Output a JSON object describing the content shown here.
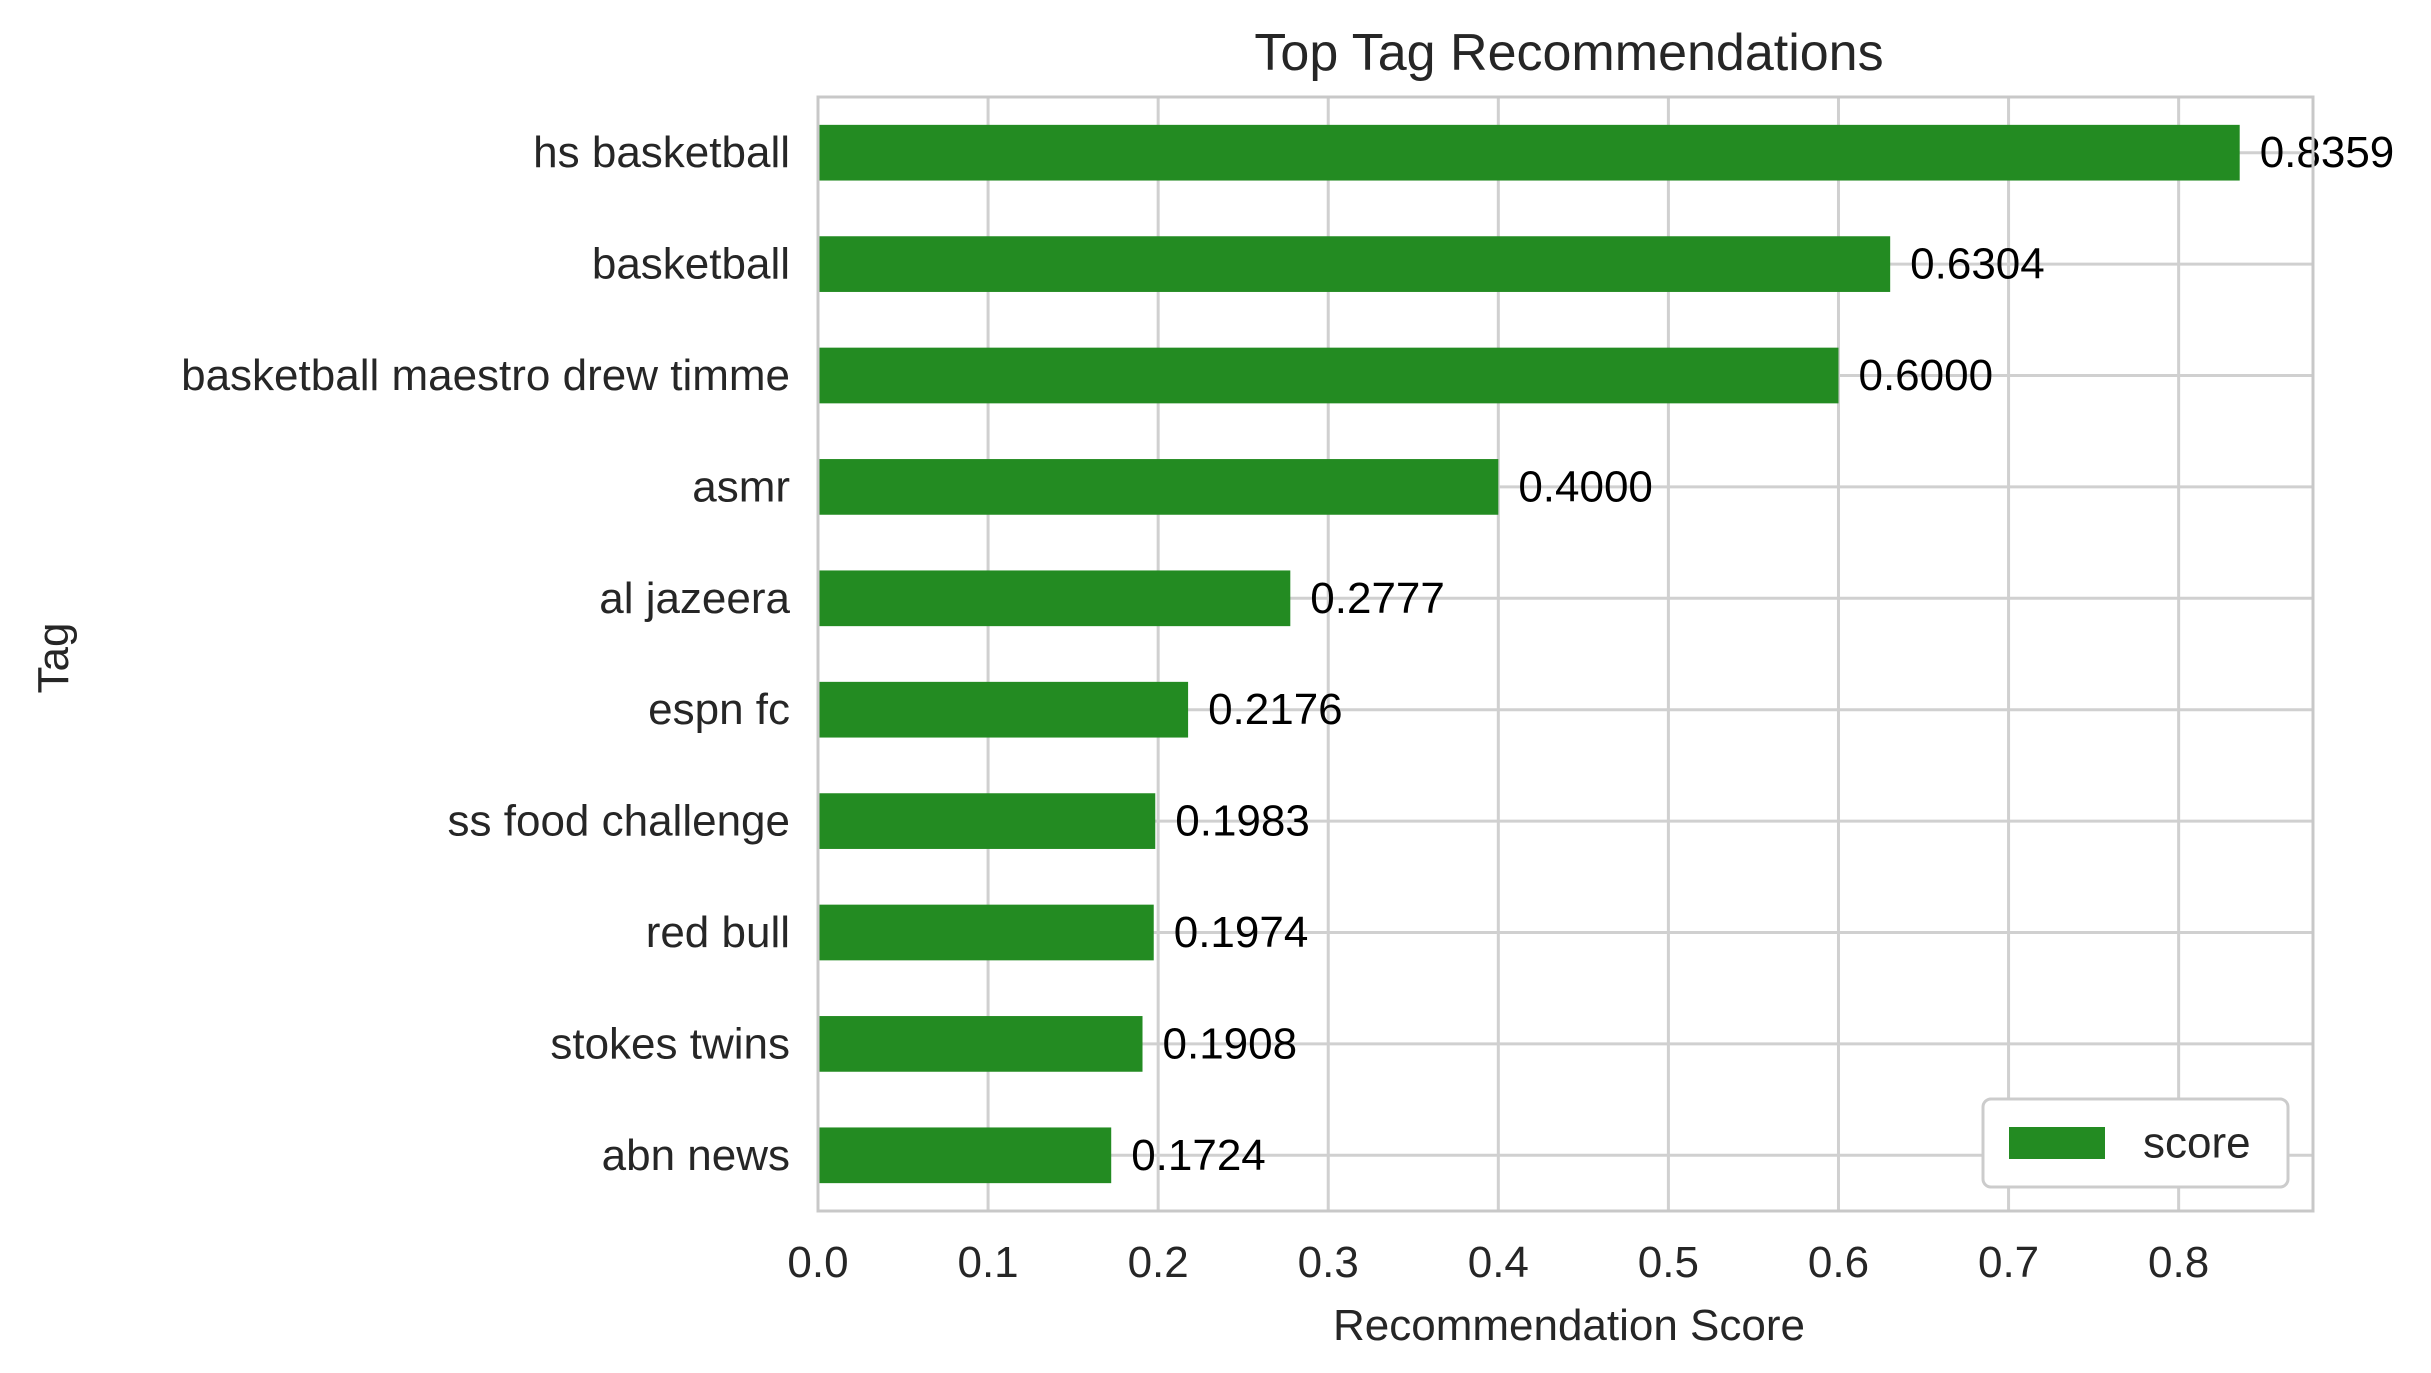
{
  "chart_data": {
    "type": "bar",
    "orientation": "horizontal",
    "title": "Top Tag Recommendations",
    "xlabel": "Recommendation Score",
    "ylabel": "Tag",
    "categories": [
      "hs basketball",
      "basketball",
      "basketball maestro drew timme",
      "asmr",
      "al jazeera",
      "espn fc",
      "ss food challenge",
      "red bull",
      "stokes twins",
      "abn news"
    ],
    "values": [
      0.8359,
      0.6304,
      0.6,
      0.4,
      0.2777,
      0.2176,
      0.1983,
      0.1974,
      0.1908,
      0.1724
    ],
    "value_labels": [
      "0.8359",
      "0.6304",
      "0.6000",
      "0.4000",
      "0.2777",
      "0.2176",
      "0.1983",
      "0.1974",
      "0.1908",
      "0.1724"
    ],
    "xlim": [
      0,
      0.879
    ],
    "xticks": [
      "0.0",
      "0.1",
      "0.2",
      "0.3",
      "0.4",
      "0.5",
      "0.6",
      "0.7",
      "0.8"
    ],
    "legend": {
      "entries": [
        "score"
      ],
      "placement": "lower-right"
    },
    "grid": true,
    "colors": {
      "bar": "#238b22",
      "grid": "#d0d0d0",
      "frame": "#c8c8c8"
    }
  }
}
